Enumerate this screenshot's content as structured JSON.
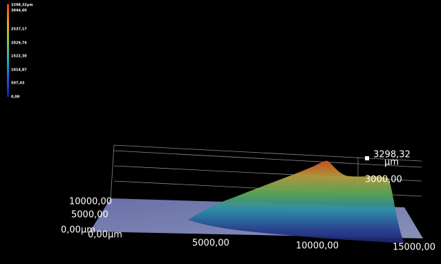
{
  "colorbar": {
    "labels": [
      "3298,32µm",
      "3044,60",
      "2537,17",
      "2029,74",
      "1522,30",
      "1014,87",
      "507,43",
      "0,00"
    ]
  },
  "axes": {
    "depth": {
      "labels": [
        "10000,00",
        "5000,00",
        "0,00µm"
      ]
    },
    "width": {
      "labels": [
        "0,00µm",
        "5000,00",
        "10000,00",
        "15000,00"
      ]
    },
    "height": {
      "max_value": "3298,32",
      "max_unit": "µm",
      "labels": [
        "3000,00"
      ]
    }
  }
}
